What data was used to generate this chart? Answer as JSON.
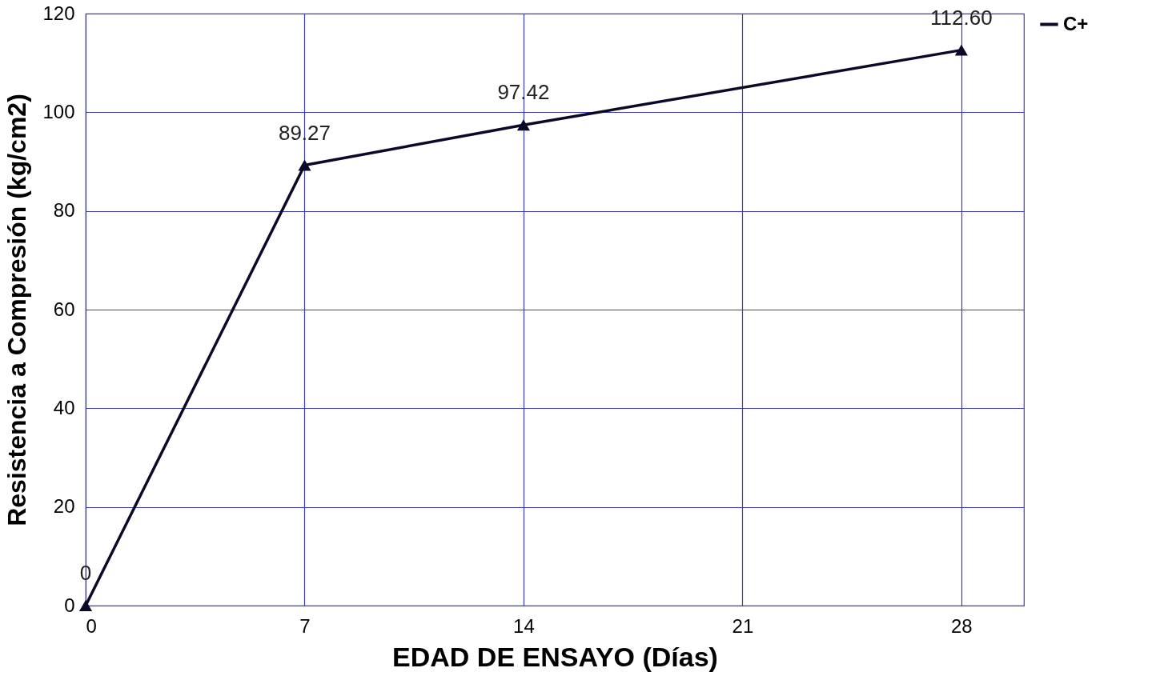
{
  "chart_data": {
    "type": "line",
    "xlabel": "EDAD DE ENSAYO (Días)",
    "ylabel": "Resistencia  a Compresión  (kg/cm2)",
    "x": [
      0,
      7,
      14,
      28
    ],
    "xlim": [
      0,
      30
    ],
    "xticks": [
      0,
      7,
      14,
      21,
      28
    ],
    "ylim": [
      0,
      120
    ],
    "yticks": [
      0,
      20,
      40,
      60,
      80,
      100,
      120
    ],
    "grid": true,
    "legend": "right",
    "marker": "triangle",
    "line_style": "solid",
    "series": [
      {
        "name": "C+",
        "color": "#0a0a28",
        "values": [
          0,
          89.27,
          97.42,
          112.6
        ],
        "value_labels": [
          "0",
          "89.27",
          "97.42",
          "112.60"
        ]
      }
    ]
  }
}
